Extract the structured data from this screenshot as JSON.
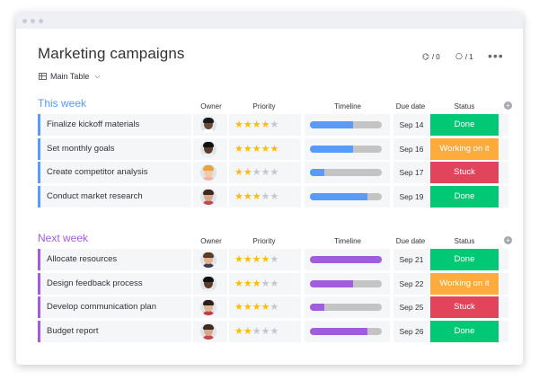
{
  "board": {
    "title": "Marketing campaigns",
    "view_label": "Main Table",
    "integrations_count": "/ 0",
    "automations_count": "/ 1"
  },
  "columns": {
    "owner": "Owner",
    "priority": "Priority",
    "timeline": "Timeline",
    "due_date": "Due date",
    "status": "Status"
  },
  "colors": {
    "blue": "#579bfc",
    "purple": "#a25ddc",
    "done": "#00c875",
    "working": "#fdab3d",
    "stuck": "#e2445c",
    "star": "#fdbc0d"
  },
  "groups": [
    {
      "title": "This week",
      "color": "#579bfc",
      "timeline_color": "#579bfc",
      "rows": [
        {
          "name": "Finalize kickoff materials",
          "priority": 4,
          "timeline": 0.6,
          "due": "Sep 14",
          "status": "Done",
          "status_color": "#00c875",
          "avatar": {
            "skin": "#6b4a35",
            "hair": "#1b1b1b",
            "shirt": "#ffffff"
          }
        },
        {
          "name": "Set monthly goals",
          "priority": 5,
          "timeline": 0.6,
          "due": "Sep 16",
          "status": "Working on it",
          "status_color": "#fdab3d",
          "avatar": {
            "skin": "#5c3b28",
            "hair": "#111111",
            "shirt": "#eef0f3"
          }
        },
        {
          "name": "Create competitor analysis",
          "priority": 2,
          "timeline": 0.2,
          "due": "Sep 17",
          "status": "Stuck",
          "status_color": "#e2445c",
          "avatar": {
            "skin": "#f1c9a5",
            "hair": "#e8a33c",
            "shirt": "#f7b4a0"
          }
        },
        {
          "name": "Conduct market research",
          "priority": 3,
          "timeline": 0.8,
          "due": "Sep 19",
          "status": "Done",
          "status_color": "#00c875",
          "avatar": {
            "skin": "#d9a88a",
            "hair": "#3d2a20",
            "shirt": "#c7484a"
          }
        }
      ]
    },
    {
      "title": "Next week",
      "color": "#a25ddc",
      "timeline_color": "#a25ddc",
      "rows": [
        {
          "name": "Allocate resources",
          "priority": 4,
          "timeline": 1.0,
          "due": "Sep 21",
          "status": "Done",
          "status_color": "#00c875",
          "avatar": {
            "skin": "#e3b08e",
            "hair": "#5a3b26",
            "shirt": "#3b3f52"
          }
        },
        {
          "name": "Design feedback process",
          "priority": 3,
          "timeline": 0.6,
          "due": "Sep 22",
          "status": "Working on it",
          "status_color": "#fdab3d",
          "avatar": {
            "skin": "#5c3b28",
            "hair": "#111111",
            "shirt": "#eef0f3"
          }
        },
        {
          "name": "Develop communication plan",
          "priority": 4,
          "timeline": 0.2,
          "due": "Sep 25",
          "status": "Stuck",
          "status_color": "#e2445c",
          "avatar": {
            "skin": "#e0b48f",
            "hair": "#2a1f1a",
            "shirt": "#c23b4a"
          }
        },
        {
          "name": "Budget report",
          "priority": 2,
          "timeline": 0.8,
          "due": "Sep 26",
          "status": "Done",
          "status_color": "#00c875",
          "avatar": {
            "skin": "#d9a88a",
            "hair": "#3d2a20",
            "shirt": "#c7484a"
          }
        }
      ]
    }
  ]
}
